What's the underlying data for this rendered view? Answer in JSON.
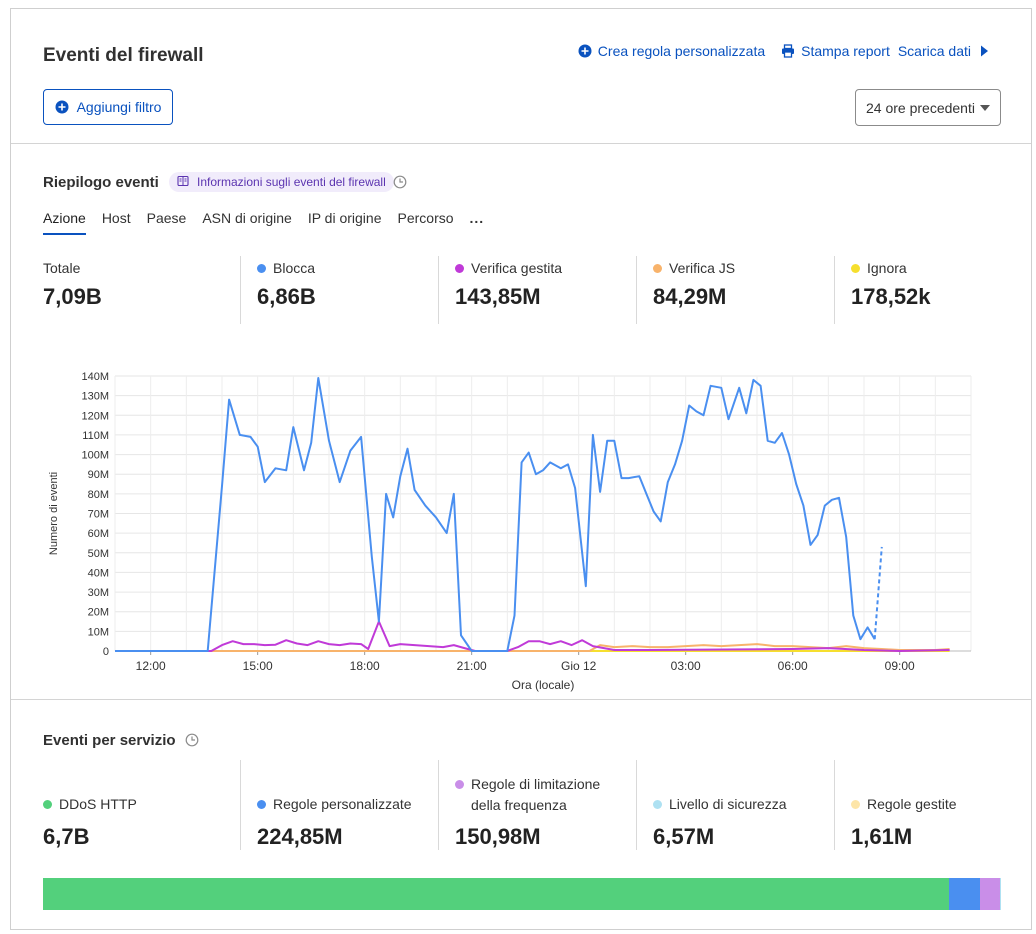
{
  "header": {
    "title": "Eventi del firewall",
    "actions": {
      "create_rule": "Crea regola personalizzata",
      "print_report": "Stampa report",
      "download": "Scarica dati"
    },
    "add_filter": "Aggiungi filtro",
    "time_range": "24 ore precedenti"
  },
  "summary": {
    "title": "Riepilogo eventi",
    "info_badge": "Informazioni sugli eventi del firewall",
    "tabs": [
      "Azione",
      "Host",
      "Paese",
      "ASN di origine",
      "IP di origine",
      "Percorso"
    ],
    "more_label": "...",
    "stats": [
      {
        "label": "Totale",
        "value": "7,09B",
        "color": ""
      },
      {
        "label": "Blocca",
        "value": "6,86B",
        "color": "#4a8ff0"
      },
      {
        "label": "Verifica gestita",
        "value": "143,85M",
        "color": "#c03ad8"
      },
      {
        "label": "Verifica JS",
        "value": "84,29M",
        "color": "#f8b36b"
      },
      {
        "label": "Ignora",
        "value": "178,52k",
        "color": "#f6df2e"
      }
    ]
  },
  "colors": {
    "blocca": "#4a8ff0",
    "verifica_gestita": "#c03ad8",
    "verifica_js": "#f8b36b",
    "ignora": "#f6df2e",
    "link": "#0a52bf"
  },
  "chart_data": {
    "type": "line",
    "xlabel": "Ora (locale)",
    "ylabel": "Numero di eventi",
    "x_ticks": [
      "12:00",
      "15:00",
      "18:00",
      "21:00",
      "Gio 12",
      "03:00",
      "06:00",
      "09:00"
    ],
    "ylim": [
      0,
      140000000
    ],
    "y_ticks": [
      "0",
      "10M",
      "20M",
      "30M",
      "40M",
      "50M",
      "60M",
      "70M",
      "80M",
      "90M",
      "100M",
      "110M",
      "120M",
      "130M",
      "140M"
    ],
    "x_range_hours": [
      11.0,
      35.0
    ],
    "grid": true,
    "series": [
      {
        "name": "Blocca",
        "color": "#4a8ff0",
        "x": [
          11.0,
          12.0,
          13.0,
          13.6,
          14.0,
          14.2,
          14.5,
          14.8,
          15.0,
          15.2,
          15.5,
          15.8,
          16.0,
          16.3,
          16.5,
          16.7,
          17.0,
          17.3,
          17.6,
          17.9,
          18.2,
          18.4,
          18.6,
          18.8,
          19.0,
          19.2,
          19.4,
          19.7,
          20.0,
          20.3,
          20.5,
          20.7,
          21.0,
          21.3,
          21.5,
          22.0,
          22.2,
          22.4,
          22.6,
          22.8,
          23.0,
          23.2,
          23.5,
          23.7,
          23.9,
          24.2,
          24.4,
          24.6,
          24.8,
          25.0,
          25.2,
          25.4,
          25.7,
          25.9,
          26.1,
          26.3,
          26.5,
          26.7,
          26.9,
          27.1,
          27.3,
          27.5,
          27.7,
          28.0,
          28.2,
          28.5,
          28.7,
          28.9,
          29.1,
          29.3,
          29.5,
          29.7,
          29.9,
          30.1,
          30.3,
          30.5,
          30.7,
          30.9,
          31.1,
          31.3,
          31.5,
          31.7,
          31.9,
          32.1,
          32.3,
          32.5,
          32.8,
          33.0,
          33.2,
          33.4,
          33.6,
          33.8,
          34.0,
          34.2,
          34.4
        ],
        "values": [
          0,
          0,
          0,
          0,
          84000000,
          128000000,
          110000000,
          109000000,
          104000000,
          86000000,
          93000000,
          92000000,
          114000000,
          92000000,
          106000000,
          139000000,
          107000000,
          86000000,
          102000000,
          109000000,
          48000000,
          15000000,
          80000000,
          68000000,
          89000000,
          103000000,
          82000000,
          74000000,
          68000000,
          60000000,
          80000000,
          8000000,
          0,
          0,
          0,
          0,
          18000000,
          96000000,
          101000000,
          90000000,
          92000000,
          96000000,
          93000000,
          95000000,
          83000000,
          33000000,
          110000000,
          81000000,
          107000000,
          107000000,
          88000000,
          88000000,
          89000000,
          80000000,
          71000000,
          66000000,
          86000000,
          95000000,
          107000000,
          125000000,
          122000000,
          120000000,
          135000000,
          134000000,
          118000000,
          134000000,
          121000000,
          138000000,
          135000000,
          107000000,
          106000000,
          111000000,
          100000000,
          85000000,
          74000000,
          54000000,
          59000000,
          74000000,
          77000000,
          78000000,
          58000000,
          18000000,
          6000000,
          12000000,
          6000000,
          53000000,
          0,
          0,
          0,
          0,
          0,
          0,
          0,
          0,
          0
        ],
        "valid_points": 86
      },
      {
        "name": "Verifica gestita",
        "color": "#c03ad8",
        "x": [
          11.0,
          13.7,
          14.0,
          14.3,
          14.6,
          14.9,
          15.2,
          15.5,
          15.8,
          16.1,
          16.4,
          16.7,
          17.0,
          17.3,
          17.6,
          17.9,
          18.1,
          18.4,
          18.7,
          19.0,
          19.4,
          19.8,
          20.2,
          20.5,
          20.8,
          21.1,
          21.5,
          22.0,
          22.3,
          22.6,
          22.9,
          23.2,
          23.5,
          23.8,
          24.1,
          24.4,
          25.0,
          26.0,
          30.0,
          31.0,
          32.0,
          33.0,
          34.4
        ],
        "values": [
          0,
          0,
          3000000,
          5000000,
          3500000,
          3500000,
          3000000,
          3200000,
          5500000,
          3800000,
          3000000,
          5000000,
          3500000,
          3000000,
          3800000,
          3500000,
          1000000,
          15000000,
          2500000,
          3500000,
          3000000,
          2500000,
          2000000,
          3000000,
          1500000,
          0,
          0,
          0,
          2000000,
          5000000,
          5000000,
          3500000,
          5000000,
          3000000,
          5500000,
          2500000,
          500000,
          500000,
          1000000,
          1500000,
          500000,
          0,
          500000
        ]
      },
      {
        "name": "Verifica JS",
        "color": "#f8b36b",
        "x": [
          11.0,
          24.3,
          24.6,
          25.0,
          25.5,
          26.0,
          26.5,
          27.0,
          27.5,
          28.0,
          28.5,
          29.0,
          29.5,
          30.0,
          30.5,
          31.0,
          31.5,
          32.0,
          32.5,
          33.0,
          33.5,
          34.0,
          34.4
        ],
        "values": [
          0,
          0,
          3000000,
          2000000,
          2500000,
          2000000,
          2000000,
          2500000,
          3000000,
          2500000,
          3000000,
          3500000,
          2500000,
          2500000,
          2000000,
          1500000,
          2500000,
          1500000,
          1000000,
          500000,
          500000,
          500000,
          1000000
        ]
      },
      {
        "name": "Ignora",
        "color": "#f6df2e",
        "x": [
          11.0,
          34.4
        ],
        "values": [
          0,
          0
        ]
      }
    ]
  },
  "services": {
    "title": "Eventi per servizio",
    "stats": [
      {
        "label": "DDoS HTTP",
        "value": "6,7B",
        "color": "#53d07c"
      },
      {
        "label": "Regole personalizzate",
        "value": "224,85M",
        "color": "#4a8ff0"
      },
      {
        "label": "Regole di limitazione della frequenza",
        "value": "150,98M",
        "color": "#c98ee8"
      },
      {
        "label": "Livello di sicurezza",
        "value": "6,57M",
        "color": "#aee1f2"
      },
      {
        "label": "Regole gestite",
        "value": "1,61M",
        "color": "#fde5a8"
      }
    ],
    "share_bar": [
      {
        "name": "DDoS HTTP",
        "fraction": 0.946,
        "color": "#53d07c"
      },
      {
        "name": "Regole personalizzate",
        "fraction": 0.032,
        "color": "#4a8ff0"
      },
      {
        "name": "Regole di limitazione della frequenza",
        "fraction": 0.021,
        "color": "#c98ee8"
      },
      {
        "name": "Livello di sicurezza",
        "fraction": 0.001,
        "color": "#aee1f2"
      }
    ]
  }
}
